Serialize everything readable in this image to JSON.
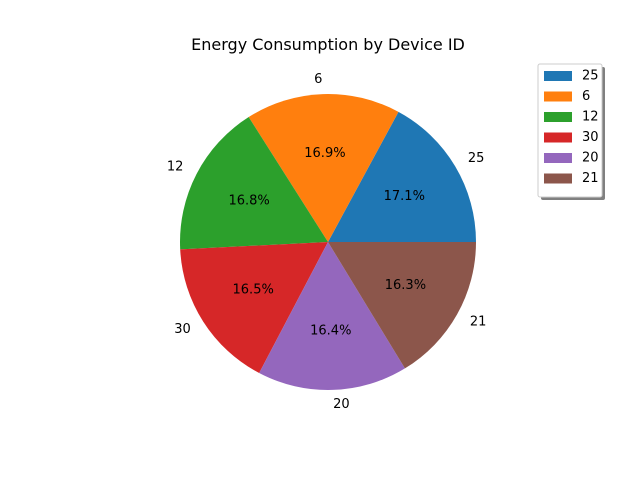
{
  "chart_data": {
    "type": "pie",
    "title": "Energy Consumption by Device ID",
    "slices": [
      {
        "label": "25",
        "percent": 17.1,
        "percent_label": "17.1%",
        "color": "#1f77b4"
      },
      {
        "label": "6",
        "percent": 16.9,
        "percent_label": "16.9%",
        "color": "#ff7f0e"
      },
      {
        "label": "12",
        "percent": 16.8,
        "percent_label": "16.8%",
        "color": "#2ca02c"
      },
      {
        "label": "30",
        "percent": 16.5,
        "percent_label": "16.5%",
        "color": "#d62728"
      },
      {
        "label": "20",
        "percent": 16.4,
        "percent_label": "16.4%",
        "color": "#9467bd"
      },
      {
        "label": "21",
        "percent": 16.3,
        "percent_label": "16.3%",
        "color": "#8c564b"
      }
    ],
    "start_angle_deg": 0,
    "direction": "counterclockwise",
    "legend": {
      "position": "upper-right-outside",
      "shadow": true
    }
  }
}
